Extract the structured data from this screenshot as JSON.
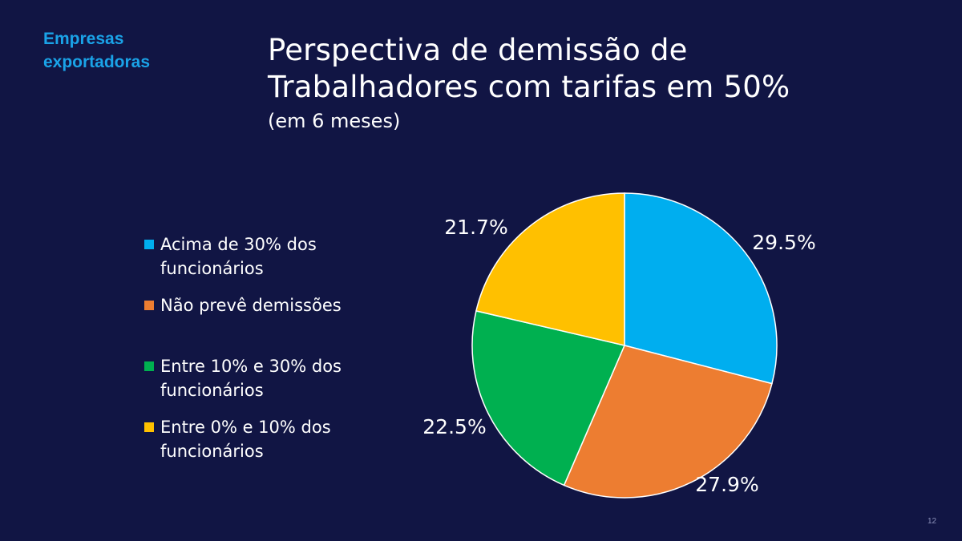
{
  "section_tag": [
    "Empresas",
    "exportadoras"
  ],
  "title_lines": [
    "Perspectiva de demissão de",
    "Trabalhadores com tarifas em 50%"
  ],
  "subtitle": "(em 6 meses)",
  "page_number": "12",
  "chart_data": {
    "type": "pie",
    "title": "Perspectiva de demissão de Trabalhadores com tarifas em 50%",
    "subtitle": "(em 6 meses)",
    "legend_position": "left",
    "slices": [
      {
        "label": "Acima de 30% dos funcionários",
        "value": 29.5,
        "display": "29.5%",
        "color": "#00aeef"
      },
      {
        "label": "Não prevê demissões",
        "value": 27.9,
        "display": "27.9%",
        "color": "#ed7d31"
      },
      {
        "label": "Entre 10% e 30% dos funcionários",
        "value": 22.5,
        "display": "22.5%",
        "color": "#00b050"
      },
      {
        "label": "Entre 0% e 10% dos funcionários",
        "value": 21.7,
        "display": "21.7%",
        "color": "#ffc000"
      }
    ]
  },
  "legend": [
    {
      "lines": [
        "Acima de 30% dos",
        "funcionários"
      ],
      "color": "#00aeef"
    },
    {
      "lines": [
        "Não prevê demissões"
      ],
      "color": "#ed7d31"
    },
    {
      "lines": [
        "Entre 10% e 30% dos",
        "funcionários"
      ],
      "color": "#00b050"
    },
    {
      "lines": [
        "Entre 0% e 10% dos",
        "funcionários"
      ],
      "color": "#ffc000"
    }
  ]
}
